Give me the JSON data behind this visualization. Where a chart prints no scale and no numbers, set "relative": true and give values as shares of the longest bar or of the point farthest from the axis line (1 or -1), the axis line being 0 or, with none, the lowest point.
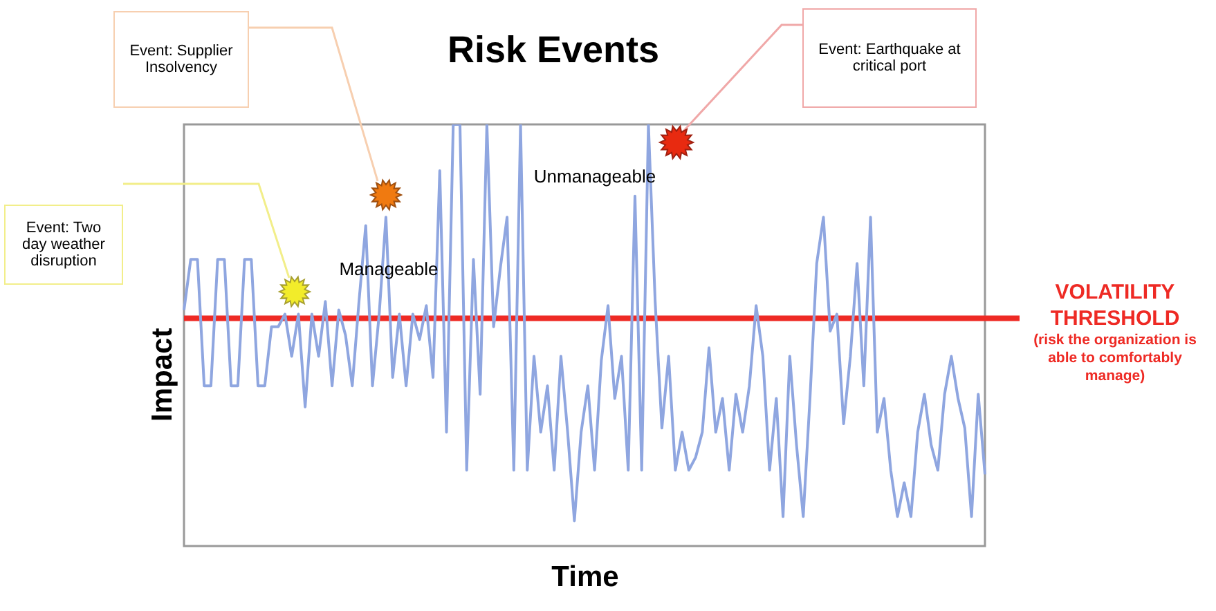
{
  "chart_data": {
    "type": "line",
    "title": "Risk Events",
    "xlabel": "Time",
    "ylabel": "Impact",
    "relative": true,
    "legend": false,
    "categories": [
      null,
      null,
      null,
      null,
      null,
      null,
      null,
      null,
      null,
      null,
      null,
      null,
      null,
      null,
      null,
      null,
      null,
      null,
      null,
      null,
      null,
      null,
      null,
      null,
      null,
      null,
      null,
      null,
      null,
      null,
      null,
      null,
      null,
      null,
      null,
      null,
      null,
      null,
      null,
      null,
      null,
      null,
      null,
      null,
      null,
      null,
      null,
      null,
      null,
      null,
      null,
      null,
      null,
      null,
      null,
      null,
      null,
      null,
      null,
      null,
      null,
      null,
      null,
      null,
      null,
      null,
      null,
      null,
      null,
      null,
      null,
      null,
      null,
      null,
      null,
      null,
      null,
      null,
      null,
      null,
      null,
      null,
      null,
      null,
      null,
      null,
      null,
      null,
      null,
      null,
      null,
      null,
      null,
      null,
      null,
      null,
      null,
      null,
      null,
      null,
      null,
      null,
      null,
      null,
      null,
      null,
      null,
      null,
      null,
      null,
      null,
      null,
      null,
      null,
      null,
      null,
      null,
      null,
      null,
      null
    ],
    "series": [
      {
        "color": "#8fa6e0",
        "values": [
          0.56,
          0.68,
          0.68,
          0.38,
          0.38,
          0.68,
          0.68,
          0.38,
          0.38,
          0.68,
          0.68,
          0.38,
          0.38,
          0.52,
          0.52,
          0.55,
          0.45,
          0.55,
          0.33,
          0.55,
          0.45,
          0.58,
          0.38,
          0.56,
          0.5,
          0.38,
          0.58,
          0.76,
          0.38,
          0.55,
          0.78,
          0.4,
          0.55,
          0.38,
          0.55,
          0.49,
          0.57,
          0.4,
          0.89,
          0.27,
          1.0,
          1.0,
          0.18,
          0.68,
          0.36,
          1.0,
          0.52,
          0.66,
          0.78,
          0.18,
          1.0,
          0.18,
          0.45,
          0.27,
          0.38,
          0.18,
          0.45,
          0.27,
          0.06,
          0.27,
          0.38,
          0.18,
          0.44,
          0.57,
          0.35,
          0.45,
          0.18,
          0.83,
          0.18,
          1.0,
          0.58,
          0.28,
          0.45,
          0.18,
          0.27,
          0.18,
          0.21,
          0.27,
          0.47,
          0.27,
          0.35,
          0.18,
          0.36,
          0.27,
          0.38,
          0.57,
          0.45,
          0.18,
          0.35,
          0.07,
          0.45,
          0.24,
          0.07,
          0.35,
          0.67,
          0.78,
          0.51,
          0.55,
          0.29,
          0.45,
          0.67,
          0.38,
          0.78,
          0.27,
          0.35,
          0.18,
          0.07,
          0.15,
          0.07,
          0.27,
          0.36,
          0.24,
          0.18,
          0.36,
          0.45,
          0.35,
          0.28,
          0.07,
          0.36,
          0.17
        ]
      }
    ],
    "ref_lines": [
      {
        "axis": "y",
        "value": 0.54,
        "label": "VOLATILITY THRESHOLD",
        "color": "#ee2a24"
      }
    ],
    "annotations": [
      "Event: Two day weather disruption",
      "Event: Supplier Insolvency",
      "Event: Earthquake at critical port",
      "Manageable",
      "Unmanageable",
      "(risk the organization is able to comfortably manage)"
    ]
  }
}
